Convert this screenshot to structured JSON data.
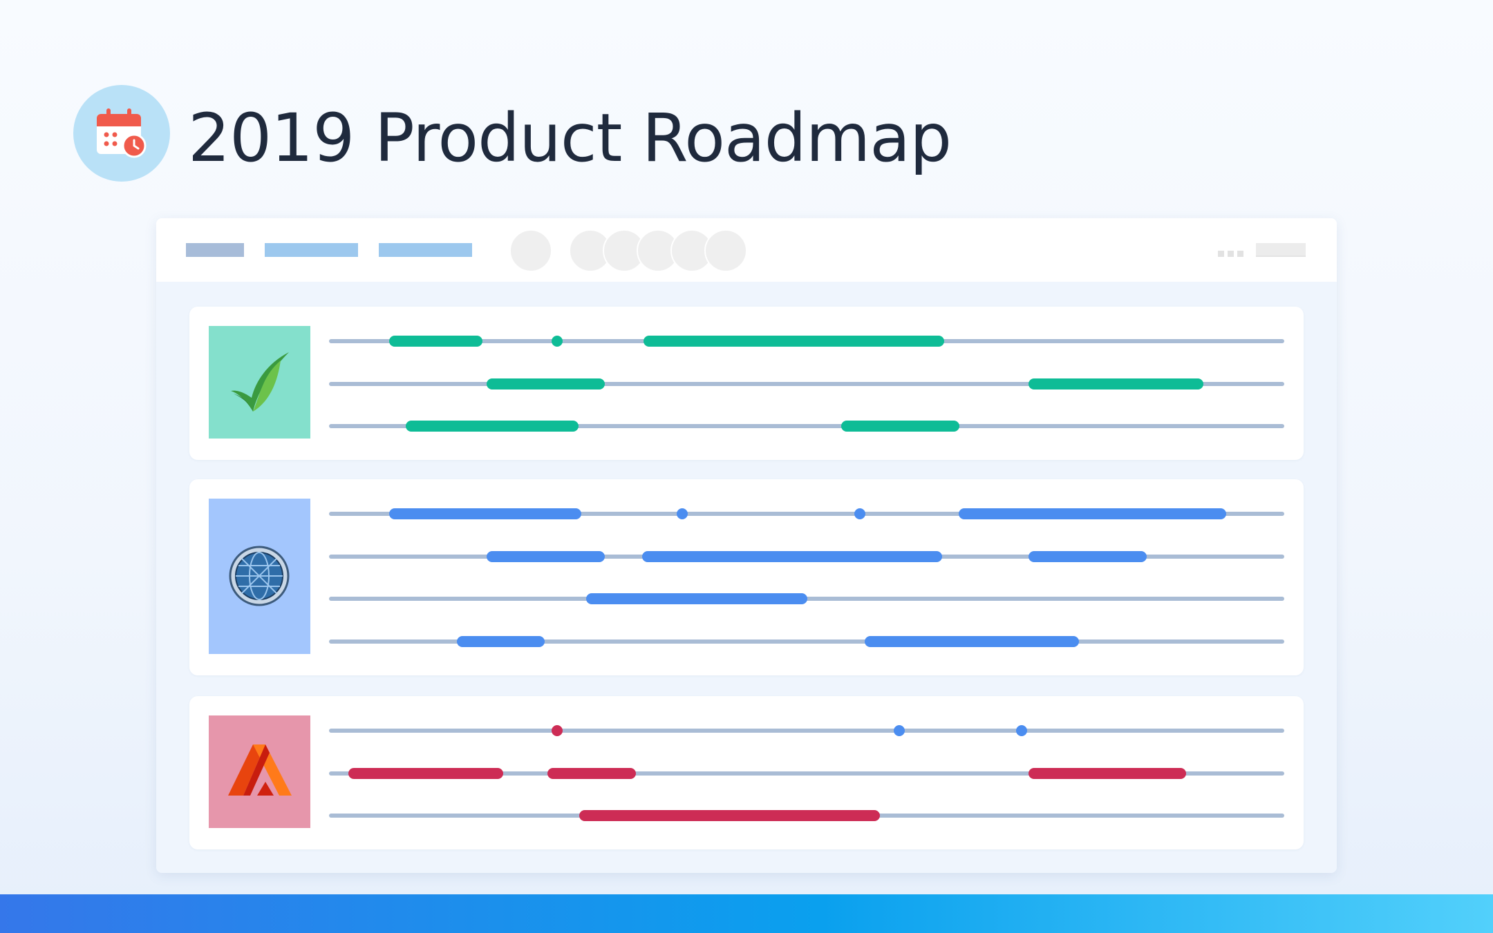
{
  "header": {
    "title": "2019 Product Roadmap",
    "icon": "calendar-clock-icon"
  },
  "toolbar": {
    "tab_count": 3,
    "avatar_count": 6,
    "overflow_icon": "ellipsis-icon"
  },
  "colors": {
    "green": "#0ebc96",
    "blue": "#4b8df0",
    "crimson": "#cd2c55",
    "track": "#a9bcd5"
  },
  "products": [
    {
      "name": "leaf-product",
      "logo_icon": "leaf-check-icon",
      "logo_bg": "#84e0cc",
      "color": "#0ebc96",
      "lanes": [
        {
          "bars": [
            [
              0.063,
              0.161
            ],
            [
              0.329,
              0.644
            ]
          ],
          "milestones": [
            0.239
          ]
        },
        {
          "bars": [
            [
              0.165,
              0.289
            ],
            [
              0.732,
              0.915
            ]
          ],
          "milestones": []
        },
        {
          "bars": [
            [
              0.08,
              0.261
            ],
            [
              0.536,
              0.66
            ]
          ],
          "milestones": []
        }
      ]
    },
    {
      "name": "globe-product",
      "logo_icon": "globe-icon",
      "logo_bg": "#a3c6fd",
      "color": "#4b8df0",
      "lanes": [
        {
          "bars": [
            [
              0.063,
              0.264
            ],
            [
              0.659,
              0.939
            ]
          ],
          "milestones": [
            0.37,
            0.556
          ]
        },
        {
          "bars": [
            [
              0.165,
              0.289
            ],
            [
              0.328,
              0.642
            ],
            [
              0.732,
              0.856
            ]
          ],
          "milestones": []
        },
        {
          "bars": [
            [
              0.269,
              0.501
            ]
          ],
          "milestones": []
        },
        {
          "bars": [
            [
              0.134,
              0.226
            ],
            [
              0.561,
              0.785
            ]
          ],
          "milestones": []
        }
      ]
    },
    {
      "name": "arch-product",
      "logo_icon": "arch-a-icon",
      "logo_bg": "#e696ab",
      "color": "#cd2c55",
      "lanes": [
        {
          "bars": [],
          "milestones": [
            0.239
          ],
          "blue_milestones": [
            0.597,
            0.725
          ]
        },
        {
          "bars": [
            [
              0.02,
              0.182
            ],
            [
              0.229,
              0.321
            ],
            [
              0.732,
              0.897
            ]
          ],
          "milestones": []
        },
        {
          "bars": [
            [
              0.262,
              0.577
            ]
          ],
          "milestones": []
        }
      ]
    }
  ]
}
